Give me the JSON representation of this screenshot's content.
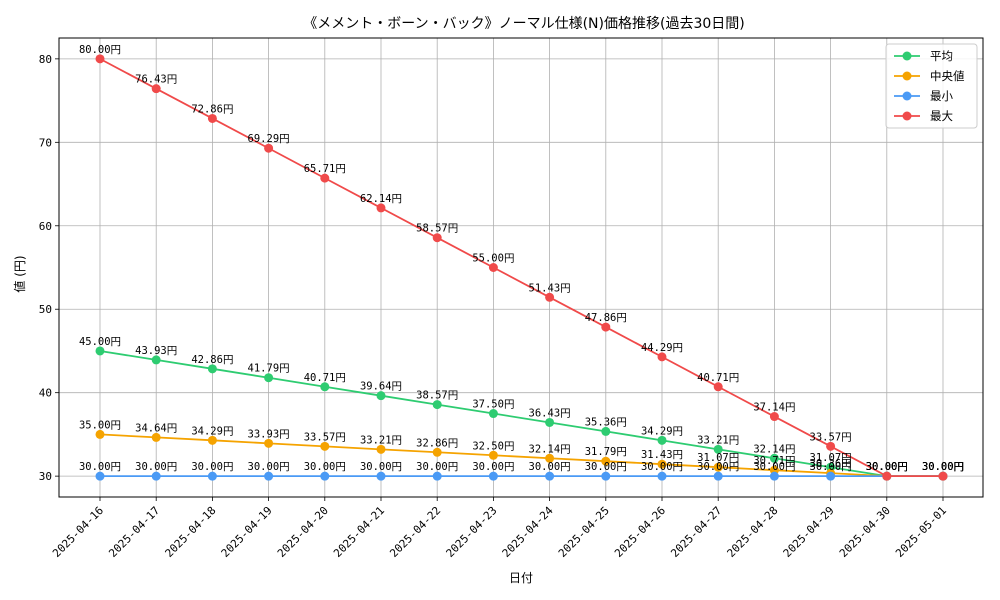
{
  "chart_data": {
    "type": "line",
    "title": "《メメント・ボーン・バック》ノーマル仕様(N)価格推移(過去30日間)",
    "xlabel": "日付",
    "ylabel": "値 (円)",
    "categories": [
      "2025-04-16",
      "2025-04-17",
      "2025-04-18",
      "2025-04-19",
      "2025-04-20",
      "2025-04-21",
      "2025-04-22",
      "2025-04-23",
      "2025-04-24",
      "2025-04-25",
      "2025-04-26",
      "2025-04-27",
      "2025-04-28",
      "2025-04-29",
      "2025-04-30",
      "2025-05-01"
    ],
    "ylim": [
      27.5,
      82.5
    ],
    "yticks": [
      30,
      40,
      50,
      60,
      70,
      80
    ],
    "grid": true,
    "legend_position": "top-right",
    "value_suffix": "円",
    "series": [
      {
        "name": "平均",
        "color": "#2ecc71",
        "values": [
          45.0,
          43.93,
          42.86,
          41.79,
          40.71,
          39.64,
          38.57,
          37.5,
          36.43,
          35.36,
          34.29,
          33.21,
          32.14,
          31.07,
          30.0,
          30.0
        ]
      },
      {
        "name": "中央値",
        "color": "#f5a300",
        "values": [
          35.0,
          34.64,
          34.29,
          33.93,
          33.57,
          33.21,
          32.86,
          32.5,
          32.14,
          31.79,
          31.43,
          31.07,
          30.71,
          30.36,
          30.0,
          30.0
        ]
      },
      {
        "name": "最小",
        "color": "#4a9af5",
        "values": [
          30.0,
          30.0,
          30.0,
          30.0,
          30.0,
          30.0,
          30.0,
          30.0,
          30.0,
          30.0,
          30.0,
          30.0,
          30.0,
          30.0,
          30.0,
          30.0
        ]
      },
      {
        "name": "最大",
        "color": "#f04a4a",
        "values": [
          80.0,
          76.43,
          72.86,
          69.29,
          65.71,
          62.14,
          58.57,
          55.0,
          51.43,
          47.86,
          44.29,
          40.71,
          37.14,
          33.57,
          30.0,
          30.0
        ]
      }
    ]
  }
}
